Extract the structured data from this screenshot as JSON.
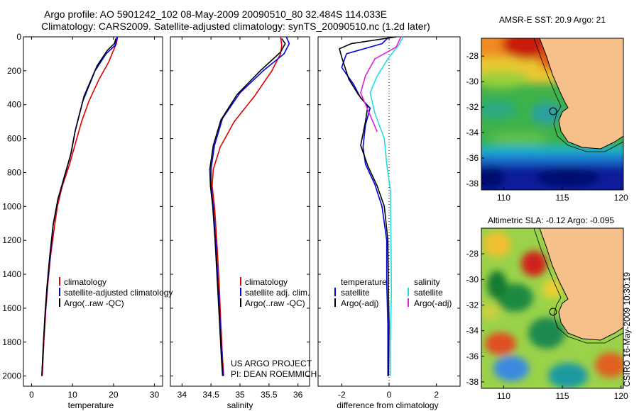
{
  "header": {
    "line1": "Argo profile: AO 5901242_102 08-May-2009 20090510_80 32.484S 114.033E",
    "line2": "Climatology: CARS2009. Satellite-adjusted climatology: synTS_20090510.nc (1.2d later)"
  },
  "stamp": "CSIRO 16-May-2009 10:30:19",
  "colors": {
    "climatology": "#e00000",
    "satellite": "#0000e0",
    "argo": "#000000",
    "sat_sal": "#22dddd",
    "argo_sal": "#e020e0"
  },
  "chart_data": [
    {
      "type": "line",
      "xlabel": "temperature",
      "xlim": [
        -2,
        32
      ],
      "ylim": [
        2060,
        0
      ],
      "xticks": [
        "0",
        "10",
        "20",
        "30"
      ],
      "yticks": [
        "0",
        "200",
        "400",
        "600",
        "800",
        "1000",
        "1200",
        "1400",
        "1600",
        "1800",
        "2000"
      ],
      "legend": [
        "climatology",
        "satellite-adjusted climatology",
        "Argo(..raw -QC)"
      ],
      "series": [
        {
          "name": "climatology",
          "color": "#e00000",
          "points": [
            [
              21.0,
              0
            ],
            [
              20.7,
              40
            ],
            [
              20.0,
              80
            ],
            [
              18.8,
              150
            ],
            [
              16.5,
              250
            ],
            [
              14.0,
              380
            ],
            [
              12.2,
              500
            ],
            [
              10.8,
              620
            ],
            [
              9.3,
              750
            ],
            [
              7.5,
              880
            ],
            [
              6.3,
              1000
            ],
            [
              5.4,
              1150
            ],
            [
              4.6,
              1300
            ],
            [
              4.0,
              1450
            ],
            [
              3.5,
              1600
            ],
            [
              3.0,
              1800
            ],
            [
              2.6,
              2000
            ]
          ]
        },
        {
          "name": "satellite-adjusted climatology",
          "color": "#0000e0",
          "points": [
            [
              20.9,
              0
            ],
            [
              20.4,
              50
            ],
            [
              18.2,
              100
            ],
            [
              15.5,
              200
            ],
            [
              12.5,
              380
            ],
            [
              10.7,
              550
            ],
            [
              9.7,
              680
            ],
            [
              8.0,
              830
            ],
            [
              6.5,
              950
            ],
            [
              5.3,
              1100
            ],
            [
              4.5,
              1300
            ],
            [
              3.9,
              1450
            ],
            [
              3.4,
              1600
            ],
            [
              2.9,
              1800
            ],
            [
              2.5,
              2000
            ]
          ]
        },
        {
          "name": "Argo(..raw -QC)",
          "color": "#000000",
          "points": [
            [
              20.6,
              10
            ],
            [
              20.2,
              40
            ],
            [
              18.5,
              80
            ],
            [
              16.0,
              170
            ],
            [
              12.8,
              350
            ],
            [
              10.6,
              560
            ],
            [
              9.5,
              700
            ],
            [
              7.8,
              840
            ],
            [
              6.4,
              960
            ],
            [
              5.2,
              1120
            ],
            [
              4.4,
              1300
            ],
            [
              3.8,
              1460
            ],
            [
              3.3,
              1620
            ],
            [
              2.9,
              1800
            ],
            [
              2.5,
              2000
            ]
          ]
        }
      ]
    },
    {
      "type": "line",
      "xlabel": "salinity",
      "xlim": [
        33.8,
        36.2
      ],
      "ylim": [
        2060,
        0
      ],
      "xticks": [
        "34",
        "34.5",
        "35",
        "35.5",
        "36"
      ],
      "legend": [
        "climatology",
        "satellite adj. clim.",
        "Argo(..raw -QC)"
      ],
      "annotation": [
        "US ARGO PROJECT",
        "PI: DEAN ROEMMICH"
      ],
      "series": [
        {
          "name": "climatology",
          "color": "#e00000",
          "points": [
            [
              35.7,
              0
            ],
            [
              35.72,
              50
            ],
            [
              35.7,
              100
            ],
            [
              35.55,
              200
            ],
            [
              35.25,
              350
            ],
            [
              34.9,
              500
            ],
            [
              34.66,
              650
            ],
            [
              34.54,
              780
            ],
            [
              34.52,
              880
            ],
            [
              34.56,
              1000
            ],
            [
              34.6,
              1200
            ],
            [
              34.64,
              1450
            ],
            [
              34.67,
              1700
            ],
            [
              34.7,
              1900
            ],
            [
              34.72,
              2000
            ]
          ]
        },
        {
          "name": "satellite adj. clim.",
          "color": "#0000e0",
          "points": [
            [
              35.8,
              0
            ],
            [
              35.85,
              40
            ],
            [
              35.76,
              100
            ],
            [
              35.4,
              200
            ],
            [
              35.0,
              330
            ],
            [
              34.7,
              480
            ],
            [
              34.56,
              640
            ],
            [
              34.5,
              780
            ],
            [
              34.5,
              880
            ],
            [
              34.54,
              1000
            ],
            [
              34.58,
              1200
            ],
            [
              34.62,
              1450
            ],
            [
              34.66,
              1700
            ],
            [
              34.69,
              1900
            ],
            [
              34.71,
              2000
            ]
          ]
        },
        {
          "name": "Argo(..raw -QC)",
          "color": "#000000",
          "points": [
            [
              35.72,
              10
            ],
            [
              35.78,
              40
            ],
            [
              35.7,
              90
            ],
            [
              35.35,
              200
            ],
            [
              34.95,
              340
            ],
            [
              34.67,
              490
            ],
            [
              34.54,
              640
            ],
            [
              34.48,
              780
            ],
            [
              34.49,
              880
            ],
            [
              34.53,
              1000
            ],
            [
              34.57,
              1200
            ],
            [
              34.61,
              1450
            ],
            [
              34.65,
              1700
            ],
            [
              34.68,
              1900
            ],
            [
              34.7,
              2000
            ]
          ]
        }
      ]
    },
    {
      "type": "line",
      "xlabel": "difference from climatology",
      "xlim": [
        -3.0,
        3.0
      ],
      "ylim": [
        2060,
        0
      ],
      "xticks": [
        "-2",
        "0",
        "2"
      ],
      "legend_left_title": "temperature",
      "legend_right_title": "salinity",
      "legend": [
        "satellite",
        "Argo(-adj)",
        "satellite",
        "Argo(-adj)"
      ],
      "series": [
        {
          "name": "temperature satellite",
          "color": "#0000e0",
          "points": [
            [
              0.0,
              0
            ],
            [
              -0.3,
              40
            ],
            [
              -1.8,
              100
            ],
            [
              -2.0,
              180
            ],
            [
              -1.5,
              280
            ],
            [
              -1.2,
              360
            ],
            [
              -0.8,
              420
            ],
            [
              -1.0,
              520
            ],
            [
              -1.1,
              650
            ],
            [
              -1.0,
              750
            ],
            [
              -0.6,
              870
            ],
            [
              -0.3,
              1000
            ],
            [
              -0.1,
              1200
            ],
            [
              -0.1,
              1450
            ],
            [
              -0.05,
              1700
            ],
            [
              -0.05,
              2000
            ]
          ]
        },
        {
          "name": "temperature Argo(-adj)",
          "color": "#000000",
          "points": [
            [
              0.3,
              0
            ],
            [
              -1.6,
              40
            ],
            [
              -2.1,
              70
            ],
            [
              -2.0,
              120
            ],
            [
              -1.7,
              250
            ],
            [
              -1.3,
              340
            ],
            [
              -0.9,
              410
            ],
            [
              -1.0,
              500
            ],
            [
              -1.2,
              640
            ],
            [
              -0.9,
              760
            ],
            [
              -0.5,
              880
            ],
            [
              -0.2,
              1000
            ],
            [
              -0.05,
              1200
            ],
            [
              -0.03,
              1480
            ],
            [
              0.0,
              1700
            ],
            [
              -0.02,
              2000
            ]
          ]
        },
        {
          "name": "salinity satellite",
          "color": "#22dddd",
          "points": [
            [
              0.6,
              0
            ],
            [
              0.4,
              50
            ],
            [
              0.0,
              120
            ],
            [
              -0.5,
              230
            ],
            [
              -0.8,
              330
            ],
            [
              -0.6,
              450
            ],
            [
              -0.2,
              600
            ],
            [
              -0.1,
              750
            ],
            [
              0.05,
              900
            ],
            [
              0.08,
              1200
            ],
            [
              0.1,
              1500
            ],
            [
              0.05,
              1800
            ],
            [
              0.05,
              2000
            ]
          ]
        },
        {
          "name": "salinity Argo(-adj)",
          "color": "#e020e0",
          "points": [
            [
              0.5,
              0
            ],
            [
              0.3,
              60
            ],
            [
              -0.6,
              130
            ],
            [
              -1.0,
              230
            ],
            [
              -1.2,
              330
            ],
            [
              -0.9,
              430
            ],
            [
              -0.5,
              560
            ]
          ]
        }
      ]
    }
  ],
  "maps": {
    "sst": {
      "title": "AMSR-E SST: 20.9 Argo: 21",
      "yticks": [
        "-28",
        "-30",
        "-32",
        "-34",
        "-36",
        "-38"
      ],
      "xticks": [
        "110",
        "115",
        "120"
      ]
    },
    "sla": {
      "title": "Altimetric SLA: -0.12 Argo: -0.095",
      "yticks": [
        "-28",
        "-30",
        "-32",
        "-34",
        "-36",
        "-38"
      ],
      "xticks": [
        "110",
        "115",
        "120"
      ]
    }
  }
}
